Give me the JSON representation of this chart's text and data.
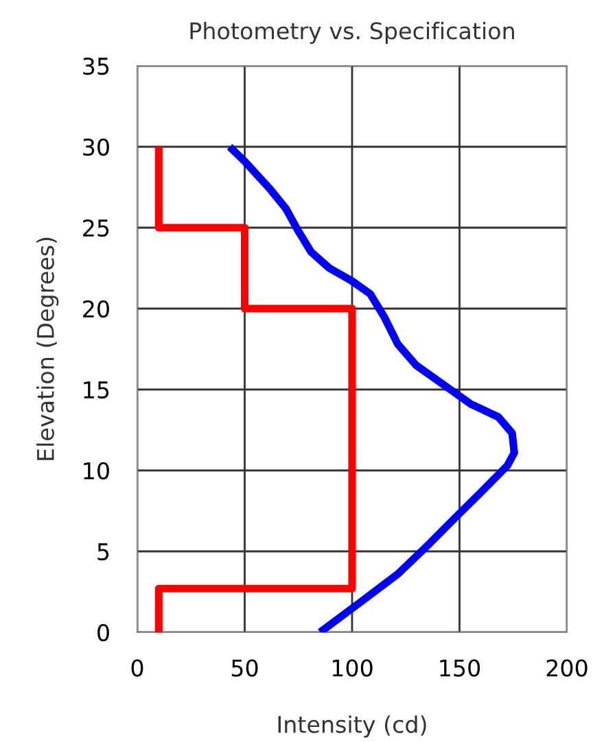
{
  "chart_data": {
    "type": "line",
    "title": "Photometry vs. Specification",
    "xlabel": "Intensity (cd)",
    "ylabel": "Elevation (Degrees)",
    "xlim": [
      0,
      200
    ],
    "xticks": [
      0,
      50,
      100,
      150,
      200
    ],
    "ylim": [
      0,
      35
    ],
    "yticks": [
      0,
      5,
      10,
      15,
      20,
      25,
      30,
      35
    ],
    "grid": true,
    "marker": "none",
    "line_style": "solid",
    "series": [
      {
        "color": "#ff0000",
        "x": [
          10,
          10,
          100,
          100,
          50,
          50,
          10,
          10
        ],
        "values": [
          0,
          2.7,
          2.7,
          20,
          20,
          25,
          25,
          30
        ]
      },
      {
        "color": "#0000ff",
        "x": [
          43,
          50,
          61.7,
          69.1,
          74.5,
          80.9,
          89.4,
          100,
          108.5,
          114.9,
          121.3,
          129.8,
          142.6,
          155.3,
          168.1,
          174.5,
          175.5,
          172.3,
          159.6,
          148.9,
          136.2,
          121.3,
          104.3,
          85.1
        ],
        "values": [
          30,
          29.1,
          27.4,
          26.2,
          24.9,
          23.5,
          22.5,
          21.7,
          20.9,
          19.5,
          17.8,
          16.5,
          15.3,
          14.1,
          13.3,
          12.3,
          11.1,
          10.3,
          8.6,
          7.2,
          5.5,
          3.6,
          1.9,
          0
        ]
      }
    ]
  }
}
